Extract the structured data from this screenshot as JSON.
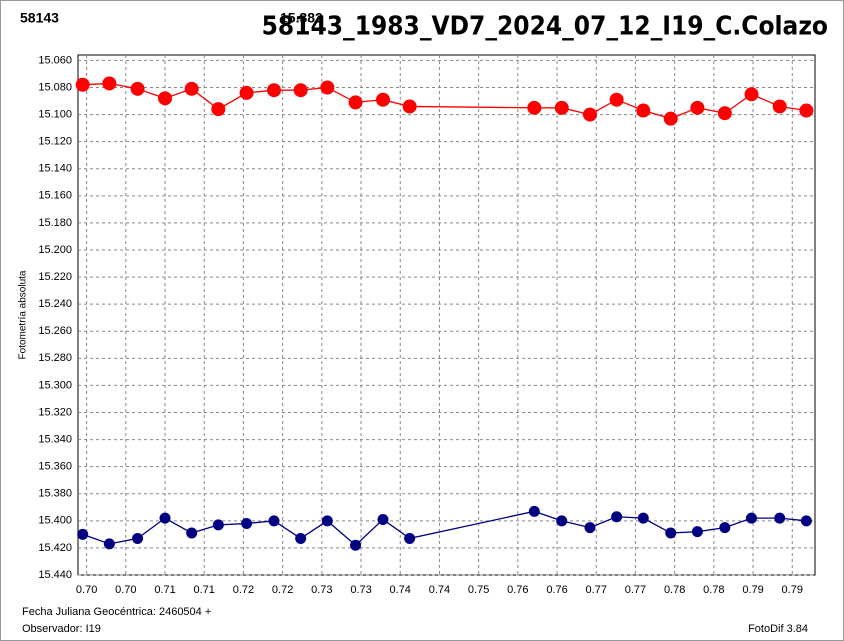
{
  "chart_data": {
    "type": "line",
    "title": "58143_1983_VD7_2024_07_12_I19_C.Colazo",
    "y_label": "Fotometría absoluta",
    "x_label": "Fecha Juliana Geocéntrica: 2460504 +",
    "observer": "Observador: I19",
    "software": "FotoDif 3.84",
    "x": [
      0.6995,
      0.7029,
      0.7065,
      0.71,
      0.7134,
      0.7168,
      0.7204,
      0.7239,
      0.7273,
      0.7307,
      0.7343,
      0.7378,
      0.7412,
      0.7571,
      0.7606,
      0.7642,
      0.7676,
      0.771,
      0.7745,
      0.7779,
      0.7814,
      0.7848,
      0.7884,
      0.7918
    ],
    "series": [
      {
        "name": "58143",
        "color": "#ff0000",
        "values": [
          15.078,
          15.077,
          15.081,
          15.088,
          15.081,
          15.096,
          15.084,
          15.082,
          15.082,
          15.08,
          15.091,
          15.089,
          15.094,
          15.095,
          15.095,
          15.1,
          15.089,
          15.097,
          15.103,
          15.095,
          15.099,
          15.085,
          15.094,
          15.097
        ]
      },
      {
        "name": "15.382",
        "color": "#000080",
        "values": [
          15.41,
          15.417,
          15.413,
          15.398,
          15.409,
          15.403,
          15.402,
          15.4,
          15.413,
          15.4,
          15.418,
          15.399,
          15.413,
          15.393,
          15.4,
          15.405,
          15.397,
          15.398,
          15.409,
          15.408,
          15.405,
          15.398,
          15.398,
          15.4
        ]
      }
    ],
    "xlim": [
      0.6989,
      0.7929
    ],
    "xticks": [
      {
        "value": 0.7,
        "label": "0.70"
      },
      {
        "value": 0.705,
        "label": "0.70"
      },
      {
        "value": 0.71,
        "label": "0.71"
      },
      {
        "value": 0.715,
        "label": "0.71"
      },
      {
        "value": 0.72,
        "label": "0.72"
      },
      {
        "value": 0.725,
        "label": "0.72"
      },
      {
        "value": 0.73,
        "label": "0.73"
      },
      {
        "value": 0.735,
        "label": "0.73"
      },
      {
        "value": 0.74,
        "label": "0.74"
      },
      {
        "value": 0.745,
        "label": "0.74"
      },
      {
        "value": 0.75,
        "label": "0.75"
      },
      {
        "value": 0.755,
        "label": "0.76"
      },
      {
        "value": 0.76,
        "label": "0.76"
      },
      {
        "value": 0.765,
        "label": "0.77"
      },
      {
        "value": 0.77,
        "label": "0.77"
      },
      {
        "value": 0.775,
        "label": "0.78"
      },
      {
        "value": 0.78,
        "label": "0.78"
      },
      {
        "value": 0.785,
        "label": "0.79"
      },
      {
        "value": 0.79,
        "label": "0.79"
      }
    ],
    "ylim": [
      15.056,
      15.44
    ],
    "y_inverted": true,
    "yticks": [
      {
        "value": 15.06,
        "label": "15.060"
      },
      {
        "value": 15.08,
        "label": "15.080"
      },
      {
        "value": 15.1,
        "label": "15.100"
      },
      {
        "value": 15.12,
        "label": "15.120"
      },
      {
        "value": 15.14,
        "label": "15.140"
      },
      {
        "value": 15.16,
        "label": "15.160"
      },
      {
        "value": 15.18,
        "label": "15.180"
      },
      {
        "value": 15.2,
        "label": "15.200"
      },
      {
        "value": 15.22,
        "label": "15.220"
      },
      {
        "value": 15.24,
        "label": "15.240"
      },
      {
        "value": 15.26,
        "label": "15.260"
      },
      {
        "value": 15.28,
        "label": "15.280"
      },
      {
        "value": 15.3,
        "label": "15.300"
      },
      {
        "value": 15.32,
        "label": "15.320"
      },
      {
        "value": 15.34,
        "label": "15.340"
      },
      {
        "value": 15.36,
        "label": "15.360"
      },
      {
        "value": 15.38,
        "label": "15.380"
      },
      {
        "value": 15.4,
        "label": "15.400"
      },
      {
        "value": 15.42,
        "label": "15.420"
      },
      {
        "value": 15.44,
        "label": "15.440"
      }
    ],
    "grid": true
  }
}
